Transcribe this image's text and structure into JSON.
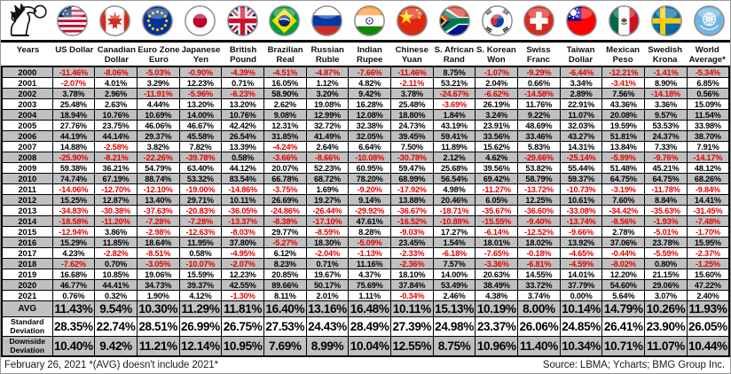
{
  "colors": {
    "negative": "#e60000",
    "row_stripe": "#c0c0c0",
    "grid_line": "#000000"
  },
  "logo": {
    "name": "bmg-griffin-logo"
  },
  "footer": {
    "date_note": "February 26, 2021 *(AVG) doesn't include 2021*",
    "source": "Source: LBMA; Ycharts; BMG Group Inc."
  },
  "chart_data": {
    "type": "table",
    "title": "Gold annual performance in various currencies",
    "columns": [
      {
        "id": "years",
        "label": "Years",
        "flag": null
      },
      {
        "id": "usd",
        "label": "US Dollar",
        "flag": "us"
      },
      {
        "id": "cad",
        "label": "Canadian Dollar",
        "flag": "canada"
      },
      {
        "id": "eur",
        "label": "Euro Zone Euro",
        "flag": "eu"
      },
      {
        "id": "jpy",
        "label": "Japanese Yen",
        "flag": "japan"
      },
      {
        "id": "gbp",
        "label": "British Pound",
        "flag": "uk"
      },
      {
        "id": "brl",
        "label": "Brazilian Real",
        "flag": "brazil"
      },
      {
        "id": "rub",
        "label": "Russian Ruble",
        "flag": "russia"
      },
      {
        "id": "inr",
        "label": "Indian Rupee",
        "flag": "india"
      },
      {
        "id": "cny",
        "label": "Chinese Yuan",
        "flag": "china"
      },
      {
        "id": "zar",
        "label": "S. African Rand",
        "flag": "south-africa"
      },
      {
        "id": "krw",
        "label": "S. Korean Won",
        "flag": "south-korea"
      },
      {
        "id": "chf",
        "label": "Swiss Franc",
        "flag": "switzerland"
      },
      {
        "id": "twd",
        "label": "Taiwan Dollar",
        "flag": "taiwan"
      },
      {
        "id": "mxn",
        "label": "Mexican Peso",
        "flag": "mexico"
      },
      {
        "id": "sek",
        "label": "Swedish Krona",
        "flag": "sweden"
      },
      {
        "id": "world",
        "label": "World Average*",
        "flag": "un"
      }
    ],
    "rows": [
      {
        "label": "2000",
        "values": [
          "-11.46%",
          "-8.06%",
          "-5.03%",
          "-0.90%",
          "-4.39%",
          "-4.51%",
          "-4.87%",
          "-7.66%",
          "-11.46%",
          "8.75%",
          "-1.07%",
          "-9.29%",
          "-6.44%",
          "-12.21%",
          "-1.41%",
          "-5.34%"
        ]
      },
      {
        "label": "2001",
        "values": [
          "-2.07%",
          "4.01%",
          "3.29%",
          "12.23%",
          "0.71%",
          "16.05%",
          "1.12%",
          "4.82%",
          "-2.11%",
          "53.21%",
          "2.04%",
          "0.66%",
          "3.34%",
          "-3.41%",
          "8.90%",
          "6.85%"
        ]
      },
      {
        "label": "2002",
        "values": [
          "3.78%",
          "2.96%",
          "-11.91%",
          "-5.96%",
          "-6.23%",
          "58.90%",
          "3.20%",
          "9.42%",
          "3.78%",
          "-24.67%",
          "-6.62%",
          "-14.58%",
          "2.89%",
          "7.56%",
          "-14.18%",
          "0.56%"
        ]
      },
      {
        "label": "2003",
        "values": [
          "25.48%",
          "2.63%",
          "4.44%",
          "13.20%",
          "13.20%",
          "2.62%",
          "19.08%",
          "16.28%",
          "25.48%",
          "-3.69%",
          "26.19%",
          "11.76%",
          "22.91%",
          "43.36%",
          "3.36%",
          "15.09%"
        ]
      },
      {
        "label": "2004",
        "values": [
          "18.94%",
          "10.76%",
          "10.69%",
          "14.00%",
          "10.76%",
          "9.08%",
          "12.99%",
          "12.08%",
          "18.80%",
          "1.84%",
          "3.24%",
          "9.22%",
          "11.07%",
          "20.08%",
          "9.57%",
          "11.54%"
        ]
      },
      {
        "label": "2005",
        "values": [
          "27.76%",
          "23.75%",
          "46.06%",
          "46.67%",
          "42.42%",
          "12.31%",
          "32.72%",
          "32.38%",
          "24.73%",
          "43.19%",
          "23.91%",
          "48.69%",
          "32.03%",
          "19.59%",
          "53.53%",
          "33.98%"
        ]
      },
      {
        "label": "2006",
        "values": [
          "44.19%",
          "44.14%",
          "29.37%",
          "45.58%",
          "26.54%",
          "31.85%",
          "41.49%",
          "32.05%",
          "39.45%",
          "59.41%",
          "33.56%",
          "33.46%",
          "43.27%",
          "51.81%",
          "24.37%",
          "38.70%"
        ]
      },
      {
        "label": "2007",
        "values": [
          "14.88%",
          "-2.58%",
          "3.82%",
          "7.82%",
          "13.39%",
          "-4.24%",
          "2.64%",
          "6.64%",
          "7.50%",
          "11.89%",
          "15.62%",
          "5.83%",
          "14.31%",
          "13.84%",
          "7.33%",
          "7.91%"
        ]
      },
      {
        "label": "2008",
        "values": [
          "-25.90%",
          "-8.21%",
          "-22.26%",
          "-39.78%",
          "0.58%",
          "-3.66%",
          "-8.66%",
          "-10.08%",
          "-30.78%",
          "2.12%",
          "4.62%",
          "-29.66%",
          "-25.14%",
          "-5.99%",
          "-9.76%",
          "-14.17%"
        ]
      },
      {
        "label": "2009",
        "values": [
          "59.38%",
          "36.21%",
          "54.79%",
          "63.40%",
          "44.12%",
          "20.07%",
          "52.23%",
          "60.95%",
          "59.47%",
          "25.68%",
          "39.56%",
          "53.82%",
          "55.44%",
          "51.48%",
          "45.21%",
          "48.12%"
        ]
      },
      {
        "label": "2010",
        "values": [
          "74.74%",
          "67.19%",
          "88.74%",
          "53.32%",
          "83.54%",
          "66.78%",
          "68.72%",
          "78.20%",
          "68.99%",
          "56.54%",
          "69.42%",
          "58.79%",
          "59.37%",
          "64.75%",
          "64.75%",
          "68.26%"
        ]
      },
      {
        "label": "2011",
        "values": [
          "-14.06%",
          "-12.70%",
          "-12.10%",
          "-19.00%",
          "-14.86%",
          "-3.75%",
          "1.69%",
          "-9.20%",
          "-17.92%",
          "4.98%",
          "-11.27%",
          "-13.72%",
          "-10.73%",
          "-3.19%",
          "-11.78%",
          "-9.84%"
        ]
      },
      {
        "label": "2012",
        "values": [
          "15.25%",
          "12.87%",
          "13.40%",
          "29.71%",
          "10.11%",
          "26.69%",
          "19.27%",
          "9.14%",
          "13.88%",
          "20.46%",
          "6.05%",
          "12.25%",
          "10.61%",
          "7.60%",
          "8.84%",
          "14.41%"
        ]
      },
      {
        "label": "2013",
        "values": [
          "-34.83%",
          "-30.38%",
          "-37.63%",
          "-20.83%",
          "-36.05%",
          "-24.86%",
          "-26.44%",
          "-29.92%",
          "-36.67%",
          "-18.71%",
          "-35.67%",
          "-36.60%",
          "-33.08%",
          "-34.42%",
          "-35.63%",
          "-31.45%"
        ]
      },
      {
        "label": "2014",
        "values": [
          "-18.58%",
          "-11.20%",
          "-7.28%",
          "-7.28%",
          "-13.37%",
          "-8.38%",
          "-17.10%",
          "47.61%",
          "-16.52%",
          "-10.88%",
          "-15.55%",
          "-9.40%",
          "-13.74%",
          "-8.56%",
          "-1.93%",
          "-7.48%"
        ]
      },
      {
        "label": "2015",
        "values": [
          "-12.94%",
          "3.86%",
          "-2.98%",
          "-12.63%",
          "-8.03%",
          "29.77%",
          "-8.59%",
          "8.28%",
          "-9.03%",
          "17.27%",
          "-6.14%",
          "-12.52%",
          "-9.66%",
          "2.78%",
          "-5.01%",
          "-1.70%"
        ]
      },
      {
        "label": "2016",
        "values": [
          "15.29%",
          "11.85%",
          "18.64%",
          "11.95%",
          "37.80%",
          "-5.27%",
          "18.30%",
          "-5.09%",
          "23.45%",
          "1.54%",
          "18.01%",
          "18.02%",
          "13.92%",
          "37.06%",
          "23.78%",
          "15.95%"
        ]
      },
      {
        "label": "2017",
        "values": [
          "4.23%",
          "-2.82%",
          "-8.51%",
          "0.58%",
          "-4.95%",
          "6.12%",
          "-2.04%",
          "-1.13%",
          "-2.33%",
          "-6.18%",
          "-7.65%",
          "-0.18%",
          "-4.65%",
          "-0.44%",
          "-5.59%",
          "-2.37%"
        ]
      },
      {
        "label": "2018",
        "values": [
          "-7.62%",
          "0.70%",
          "-3.05%",
          "-10.07%",
          "-2.07%",
          "8.23%",
          "0.71%",
          "11.16%",
          "-2.36%",
          "7.57%",
          "-3.36%",
          "-6.81%",
          "-4.59%",
          "-8.02%",
          "0.80%",
          "-1.25%"
        ]
      },
      {
        "label": "2019",
        "values": [
          "16.68%",
          "10.85%",
          "19.06%",
          "15.59%",
          "12.23%",
          "20.85%",
          "19.67%",
          "4.37%",
          "18.10%",
          "14.00%",
          "20.63%",
          "14.55%",
          "14.01%",
          "12.20%",
          "21.15%",
          "15.60%"
        ]
      },
      {
        "label": "2020",
        "values": [
          "46.77%",
          "44.41%",
          "34.73%",
          "39.37%",
          "42.55%",
          "89.66%",
          "50.17%",
          "75.69%",
          "37.84%",
          "53.49%",
          "38.49%",
          "33.72%",
          "37.79%",
          "54.60%",
          "29.06%",
          "47.22%"
        ]
      },
      {
        "label": "2021",
        "values": [
          "0.76%",
          "0.32%",
          "1.90%",
          "4.12%",
          "-1.30%",
          "8.11%",
          "2.01%",
          "1.11%",
          "-0.34%",
          "2.46%",
          "4.38%",
          "3.74%",
          "0.00%",
          "5.64%",
          "3.07%",
          "2.40%"
        ]
      }
    ],
    "summary_rows": [
      {
        "label": "AVG",
        "values": [
          "11.43%",
          "9.54%",
          "10.30%",
          "11.29%",
          "11.81%",
          "16.40%",
          "13.16%",
          "16.48%",
          "10.11%",
          "15.13%",
          "10.19%",
          "8.00%",
          "10.14%",
          "14.79%",
          "10.26%",
          "11.93%"
        ]
      },
      {
        "label": "Standard Deviation",
        "values": [
          "28.35%",
          "22.74%",
          "28.51%",
          "26.99%",
          "26.75%",
          "27.53%",
          "24.43%",
          "28.49%",
          "27.39%",
          "24.98%",
          "23.37%",
          "26.06%",
          "24.85%",
          "26.41%",
          "23.90%",
          "26.05%"
        ]
      },
      {
        "label": "Downside Deviation",
        "values": [
          "10.40%",
          "9.42%",
          "11.21%",
          "12.14%",
          "10.95%",
          "7.69%",
          "8.99%",
          "10.04%",
          "12.55%",
          "8.75%",
          "10.96%",
          "11.40%",
          "10.34%",
          "10.71%",
          "11.07%",
          "10.44%"
        ]
      }
    ]
  }
}
